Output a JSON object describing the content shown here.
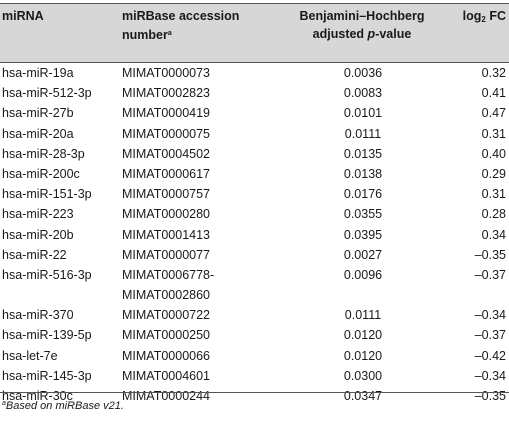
{
  "table": {
    "headers": {
      "mirna": "miRNA",
      "accession": "miRBase accession number",
      "accession_mark": "a",
      "bh_line1": "Benjamini–Hochberg",
      "bh_line2_pre": "adjusted ",
      "bh_line2_italic": "p",
      "bh_line2_post": "-value",
      "fc_pre": "log",
      "fc_sub": "2",
      "fc_post": " FC"
    },
    "rows": [
      {
        "mirna": "hsa-miR-19a",
        "accession": "MIMAT0000073",
        "p": "0.0036",
        "fc": "0.32"
      },
      {
        "mirna": "hsa-miR-512-3p",
        "accession": "MIMAT0002823",
        "p": "0.0083",
        "fc": "0.41"
      },
      {
        "mirna": "hsa-miR-27b",
        "accession": "MIMAT0000419",
        "p": "0.0101",
        "fc": "0.47"
      },
      {
        "mirna": "hsa-miR-20a",
        "accession": "MIMAT0000075",
        "p": "0.0111",
        "fc": "0.31"
      },
      {
        "mirna": "hsa-miR-28-3p",
        "accession": "MIMAT0004502",
        "p": "0.0135",
        "fc": "0.40"
      },
      {
        "mirna": "hsa-miR-200c",
        "accession": "MIMAT0000617",
        "p": "0.0138",
        "fc": "0.29"
      },
      {
        "mirna": "hsa-miR-151-3p",
        "accession": "MIMAT0000757",
        "p": "0.0176",
        "fc": "0.31"
      },
      {
        "mirna": "hsa-miR-223",
        "accession": "MIMAT0000280",
        "p": "0.0355",
        "fc": "0.28"
      },
      {
        "mirna": "hsa-miR-20b",
        "accession": "MIMAT0001413",
        "p": "0.0395",
        "fc": "0.34"
      },
      {
        "mirna": "hsa-miR-22",
        "accession": "MIMAT0000077",
        "p": "0.0027",
        "fc": "–0.35"
      },
      {
        "mirna": "hsa-miR-516-3p",
        "accession": "MIMAT0006778-MIMAT0002860",
        "p": "0.0096",
        "fc": "–0.37"
      },
      {
        "mirna": "hsa-miR-370",
        "accession": "MIMAT0000722",
        "p": "0.0111",
        "fc": "–0.34"
      },
      {
        "mirna": "hsa-miR-139-5p",
        "accession": "MIMAT0000250",
        "p": "0.0120",
        "fc": "–0.37"
      },
      {
        "mirna": "hsa-let-7e",
        "accession": "MIMAT0000066",
        "p": "0.0120",
        "fc": "–0.42"
      },
      {
        "mirna": "hsa-miR-145-3p",
        "accession": "MIMAT0004601",
        "p": "0.0300",
        "fc": "–0.34"
      },
      {
        "mirna": "hsa-miR-30c",
        "accession": "MIMAT0000244",
        "p": "0.0347",
        "fc": "–0.35"
      }
    ]
  },
  "footnote": {
    "mark": "a",
    "text": "Based on miRBase v21."
  },
  "colors": {
    "header_background": "#d7d7d7",
    "rule": "#555555",
    "text": "#1a1a1a"
  }
}
